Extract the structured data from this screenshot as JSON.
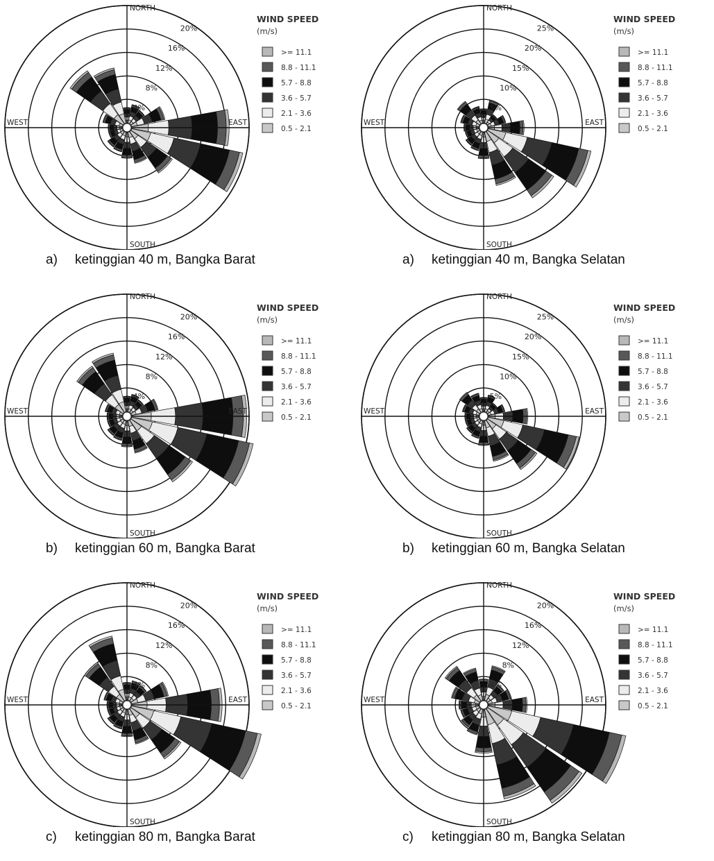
{
  "legend": {
    "title": "WIND SPEED",
    "unit": "(m/s)",
    "bins": [
      ">= 11.1",
      "8.8 - 11.1",
      "5.7 - 8.8",
      "3.6 - 5.7",
      "2.1 - 3.6",
      "0.5 - 2.1"
    ],
    "colors": [
      "#b8b8b8",
      "#585858",
      "#0e0e0e",
      "#343434",
      "#ececec",
      "#c8c8c8"
    ]
  },
  "compass": {
    "north": "NORTH",
    "south": "SOUTH",
    "east": "EAST",
    "west": "WEST"
  },
  "directions": [
    "N",
    "NNE",
    "NE",
    "ENE",
    "E",
    "ESE",
    "SE",
    "SSE",
    "S",
    "SSW",
    "SW",
    "WSW",
    "W",
    "WNW",
    "NW",
    "NNW"
  ],
  "chart_data": [
    {
      "type": "windrose",
      "panel": "a",
      "caption_letter": "a)",
      "caption": "ketinggian 40 m, Bangka Barat",
      "rmax": 20,
      "ring_values": [
        4,
        8,
        12,
        16,
        20
      ],
      "ring_labels": [
        "4%",
        "8%",
        "12%",
        "16%",
        "20%"
      ],
      "totals": [
        2.6,
        3.2,
        2.8,
        5.8,
        16.6,
        19.4,
        8.6,
        5.4,
        4.4,
        3.4,
        3.2,
        2.4,
        2.4,
        3.4,
        11.0,
        9.6
      ]
    },
    {
      "type": "windrose",
      "panel": "b",
      "caption_letter": "a)",
      "caption": "ketinggian 40 m, Bangka Selatan",
      "rmax": 25,
      "ring_values": [
        5,
        10,
        15,
        20,
        25
      ],
      "ring_labels": [
        "5%",
        "10%",
        "15%",
        "20%",
        "25%"
      ],
      "totals": [
        3.0,
        5.0,
        2.4,
        3.8,
        7.6,
        22.4,
        17.2,
        11.6,
        5.6,
        4.0,
        3.6,
        3.0,
        3.2,
        4.0,
        5.8,
        3.6
      ]
    },
    {
      "type": "windrose",
      "panel": "c",
      "caption_letter": "b)",
      "caption": "ketinggian 60 m, Bangka Barat",
      "rmax": 20,
      "ring_values": [
        4,
        8,
        12,
        16,
        20
      ],
      "ring_labels": [
        "4%",
        "8%",
        "12%",
        "16%",
        "20%"
      ],
      "totals": [
        2.6,
        3.0,
        2.6,
        4.6,
        19.6,
        21.2,
        12.8,
        5.6,
        4.4,
        3.4,
        3.2,
        2.6,
        2.6,
        3.0,
        9.6,
        10.2
      ]
    },
    {
      "type": "windrose",
      "panel": "d",
      "caption_letter": "b)",
      "caption": "ketinggian 60 m, Bangka Selatan",
      "rmax": 25,
      "ring_values": [
        5,
        10,
        15,
        20,
        25
      ],
      "ring_labels": [
        "5%",
        "10%",
        "15%",
        "20%",
        "25%"
      ],
      "totals": [
        3.0,
        3.6,
        2.4,
        3.6,
        8.4,
        19.8,
        12.8,
        8.8,
        5.2,
        3.8,
        3.4,
        3.0,
        3.0,
        3.6,
        5.2,
        4.0
      ]
    },
    {
      "type": "windrose",
      "panel": "e",
      "caption_letter": "c)",
      "caption": "ketinggian 80 m, Bangka Barat",
      "rmax": 20,
      "ring_values": [
        4,
        8,
        12,
        16,
        20
      ],
      "ring_labels": [
        "4%",
        "8%",
        "12%",
        "16%",
        "20%"
      ],
      "totals": [
        3.0,
        3.4,
        3.2,
        6.4,
        15.4,
        22.6,
        10.4,
        6.0,
        4.6,
        3.4,
        3.2,
        2.6,
        2.6,
        3.2,
        8.0,
        11.2
      ]
    },
    {
      "type": "windrose",
      "panel": "f",
      "caption_letter": "c)",
      "caption": "ketinggian 80 m, Bangka Selatan",
      "rmax": 20,
      "ring_values": [
        4,
        8,
        12,
        16,
        20
      ],
      "ring_labels": [
        "4%",
        "8%",
        "12%",
        "16%",
        "20%"
      ],
      "totals": [
        3.6,
        6.0,
        3.4,
        4.0,
        6.6,
        24.0,
        19.6,
        15.6,
        7.4,
        4.4,
        3.8,
        3.2,
        3.4,
        4.8,
        7.2,
        5.6
      ]
    }
  ]
}
